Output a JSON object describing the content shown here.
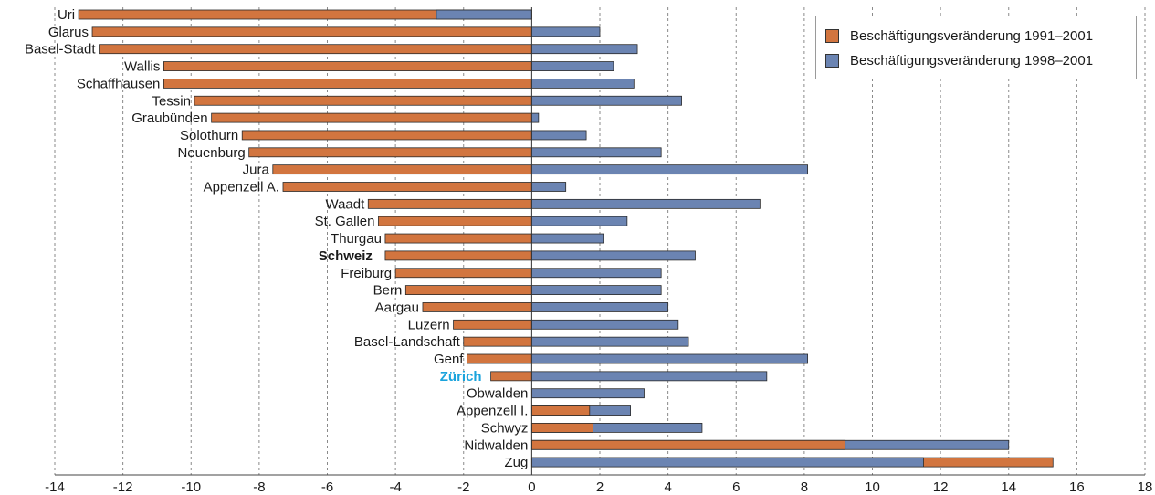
{
  "chart_data": {
    "type": "bar",
    "orientation": "horizontal",
    "categories": [
      "Uri",
      "Glarus",
      "Basel-Stadt",
      "Wallis",
      "Schaffhausen",
      "Tessin",
      "Graubünden",
      "Solothurn",
      "Neuenburg",
      "Jura",
      "Appenzell A.",
      "Waadt",
      "St. Gallen",
      "Thurgau",
      "Schweiz",
      "Freiburg",
      "Bern",
      "Aargau",
      "Luzern",
      "Basel-Landschaft",
      "Genf",
      "Zürich",
      "Obwalden",
      "Appenzell I.",
      "Schwyz",
      "Nidwalden",
      "Zug"
    ],
    "highlight": {
      "Schweiz": "bold",
      "Zürich": "#1aa3dc"
    },
    "series": [
      {
        "name": "Beschäftigungsveränderung 1991–2001",
        "color": "#d2753f",
        "values": [
          -13.3,
          -12.9,
          -12.7,
          -10.8,
          -10.8,
          -9.9,
          -9.4,
          -8.5,
          -8.3,
          -7.6,
          -7.3,
          -4.8,
          -4.5,
          -4.3,
          -4.3,
          -4.0,
          -3.7,
          -3.2,
          -2.3,
          -2.0,
          -1.9,
          -1.2,
          0.0,
          1.7,
          1.8,
          9.2,
          15.3
        ]
      },
      {
        "name": "Beschäftigungsveränderung 1998–2001",
        "color": "#6b84b2",
        "values": [
          -2.8,
          2.0,
          3.1,
          2.4,
          3.0,
          4.4,
          0.2,
          1.6,
          3.8,
          8.1,
          1.0,
          6.7,
          2.8,
          2.1,
          4.8,
          3.8,
          3.8,
          4.0,
          4.3,
          4.6,
          8.1,
          6.9,
          3.3,
          2.9,
          5.0,
          14.0,
          11.5
        ]
      }
    ],
    "xlim": [
      -14,
      18
    ],
    "xticks": [
      "-14",
      "-12",
      "-10",
      "-8",
      "-6",
      "-4",
      "-2",
      "0",
      "2",
      "4",
      "6",
      "8",
      "10",
      "12",
      "14",
      "16",
      "18"
    ],
    "grid": "vertical dotted",
    "legend_position": "top-right",
    "title": "",
    "xlabel": "",
    "ylabel": ""
  }
}
